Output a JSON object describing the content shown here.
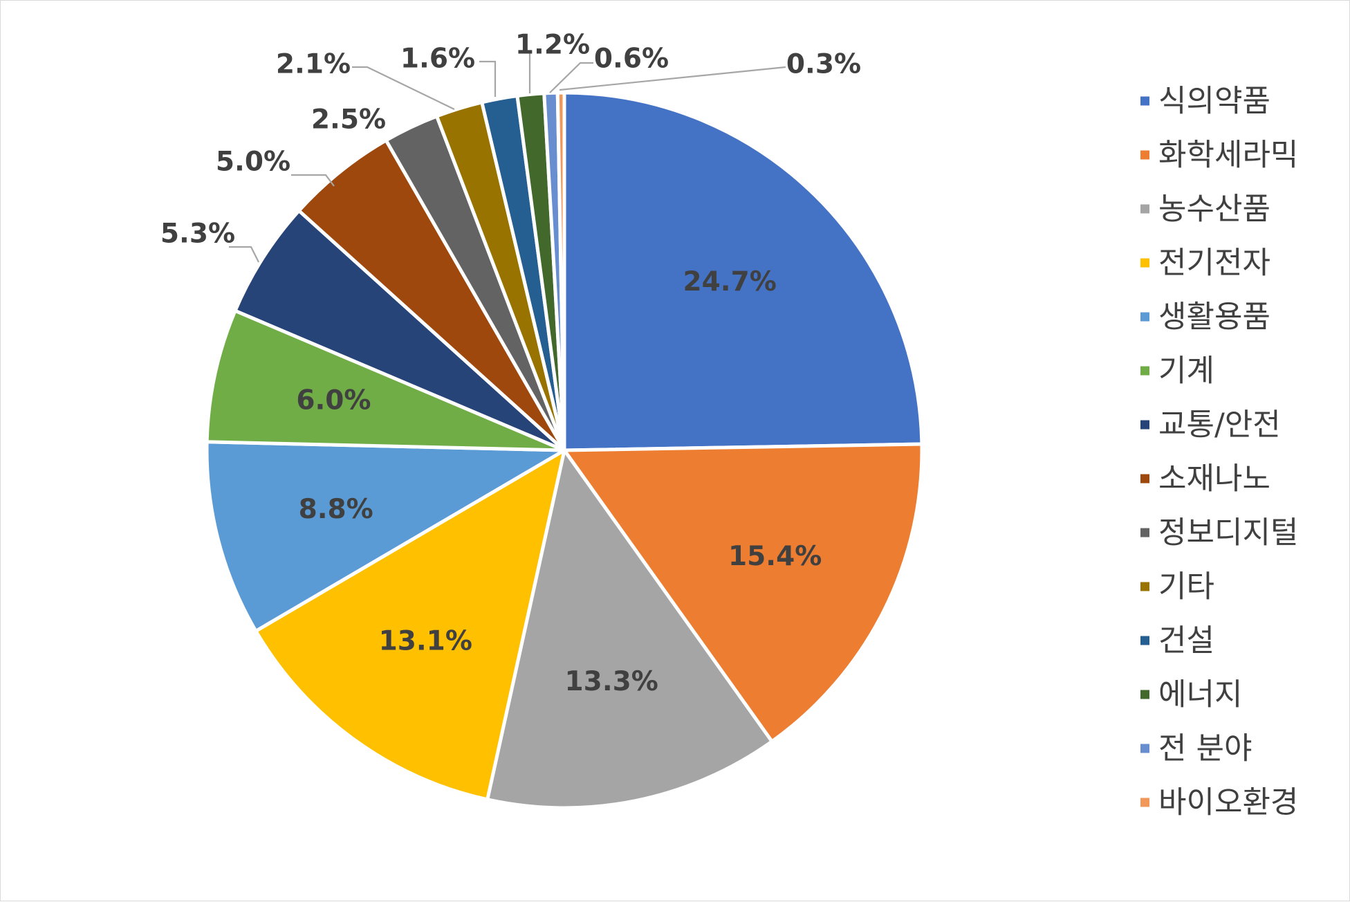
{
  "chart_data": {
    "type": "pie",
    "title": "",
    "legend_position": "right",
    "start_angle_deg": 0,
    "direction": "clockwise",
    "slices": [
      {
        "label": "식의약품",
        "value": 24.7,
        "display": "24.7%",
        "color": "#4472C4"
      },
      {
        "label": "화학세라믹",
        "value": 15.4,
        "display": "15.4%",
        "color": "#ED7D31"
      },
      {
        "label": "농수산품",
        "value": 13.3,
        "display": "13.3%",
        "color": "#A5A5A5"
      },
      {
        "label": "전기전자",
        "value": 13.1,
        "display": "13.1%",
        "color": "#FFC000"
      },
      {
        "label": "생활용품",
        "value": 8.8,
        "display": "8.8%",
        "color": "#5B9BD5"
      },
      {
        "label": "기계",
        "value": 6.0,
        "display": "6.0%",
        "color": "#70AD47"
      },
      {
        "label": "교통/안전",
        "value": 5.3,
        "display": "5.3%",
        "color": "#264478"
      },
      {
        "label": "소재나노",
        "value": 5.0,
        "display": "5.0%",
        "color": "#9E480E"
      },
      {
        "label": "정보디지털",
        "value": 2.5,
        "display": "2.5%",
        "color": "#636363"
      },
      {
        "label": "기타",
        "value": 2.1,
        "display": "2.1%",
        "color": "#997300"
      },
      {
        "label": "건설",
        "value": 1.6,
        "display": "1.6%",
        "color": "#255E91"
      },
      {
        "label": "에너지",
        "value": 1.2,
        "display": "1.2%",
        "color": "#43682B"
      },
      {
        "label": "전 분야",
        "value": 0.6,
        "display": "0.6%",
        "color": "#698ED0"
      },
      {
        "label": "바이오환경",
        "value": 0.3,
        "display": "0.3%",
        "color": "#F1975A"
      }
    ]
  }
}
